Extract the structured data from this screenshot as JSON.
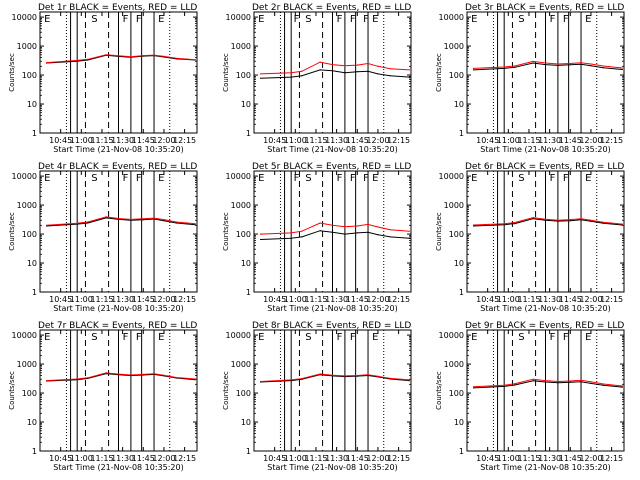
{
  "figure": {
    "title_suffix": "BLACK = Events, RED = LLD",
    "xlabel": "Start Time (21-Nov-08 10:35:20)",
    "ylabel": "Counts/sec",
    "x_tick_labels": [
      "10:45",
      "11:00",
      "11:15",
      "11:30",
      "11:45",
      "12:00",
      "12:15"
    ],
    "y_tick_labels": [
      "1",
      "10",
      "100",
      "1000",
      "10000"
    ],
    "colors": {
      "events": "#000000",
      "lld": "#ff0000"
    }
  },
  "chart_data": [
    {
      "type": "line",
      "title": "Det 1r",
      "xlim": [
        10.5,
        12.4
      ],
      "ylim": [
        1,
        15000
      ],
      "yscale": "log",
      "x": [
        10.58,
        10.95,
        11.08,
        11.3,
        11.45,
        11.6,
        11.75,
        11.88,
        12.0,
        12.15,
        12.38
      ],
      "series": [
        {
          "name": "Events",
          "values": [
            260,
            300,
            330,
            480,
            440,
            410,
            450,
            470,
            420,
            360,
            330
          ]
        },
        {
          "name": "LLD",
          "values": [
            270,
            320,
            350,
            500,
            460,
            430,
            470,
            490,
            440,
            380,
            340
          ]
        }
      ],
      "solid_lines": [
        10.87,
        10.95,
        11.45,
        11.6,
        11.73,
        11.88
      ],
      "dashed_lines": [
        11.05,
        11.33
      ],
      "dotted_lines": [
        10.82,
        12.07
      ],
      "region_labels": [
        {
          "text": "E",
          "x": 10.55
        },
        {
          "text": "S",
          "x": 11.12
        },
        {
          "text": "F",
          "x": 11.5
        },
        {
          "text": "F",
          "x": 11.66
        },
        {
          "text": "E",
          "x": 11.93
        }
      ]
    },
    {
      "type": "line",
      "title": "Det 2r",
      "xlim": [
        10.5,
        12.4
      ],
      "ylim": [
        1,
        15000
      ],
      "yscale": "log",
      "x": [
        10.58,
        10.95,
        11.08,
        11.3,
        11.45,
        11.6,
        11.75,
        11.88,
        12.0,
        12.15,
        12.38
      ],
      "series": [
        {
          "name": "Events",
          "values": [
            78,
            85,
            95,
            150,
            140,
            120,
            130,
            135,
            110,
            95,
            85
          ]
        },
        {
          "name": "LLD",
          "values": [
            110,
            120,
            135,
            280,
            230,
            210,
            220,
            250,
            200,
            165,
            150
          ]
        }
      ],
      "solid_lines": [
        10.87,
        10.95,
        11.45,
        11.6,
        11.73,
        11.88
      ],
      "dashed_lines": [
        11.05,
        11.33
      ],
      "dotted_lines": [
        10.82,
        12.07
      ],
      "region_labels": [
        {
          "text": "E",
          "x": 10.55
        },
        {
          "text": "F",
          "x": 10.98
        },
        {
          "text": "S",
          "x": 11.12
        },
        {
          "text": "F",
          "x": 11.5
        },
        {
          "text": "F",
          "x": 11.66
        },
        {
          "text": "F",
          "x": 11.82
        },
        {
          "text": "E",
          "x": 11.93
        }
      ]
    },
    {
      "type": "line",
      "title": "Det 3r",
      "xlim": [
        10.5,
        12.4
      ],
      "ylim": [
        1,
        15000
      ],
      "yscale": "log",
      "x": [
        10.58,
        10.95,
        11.08,
        11.3,
        11.45,
        11.6,
        11.75,
        11.88,
        12.0,
        12.15,
        12.38
      ],
      "series": [
        {
          "name": "Events",
          "values": [
            150,
            170,
            185,
            260,
            230,
            215,
            225,
            235,
            210,
            180,
            155
          ]
        },
        {
          "name": "LLD",
          "values": [
            170,
            190,
            205,
            295,
            260,
            240,
            250,
            265,
            240,
            205,
            175
          ]
        }
      ],
      "solid_lines": [
        10.87,
        10.95,
        11.45,
        11.6,
        11.73,
        11.88
      ],
      "dashed_lines": [
        11.05,
        11.33
      ],
      "dotted_lines": [
        10.82,
        12.07
      ],
      "region_labels": [
        {
          "text": "E",
          "x": 10.55
        },
        {
          "text": "S",
          "x": 11.12
        },
        {
          "text": "F",
          "x": 11.5
        },
        {
          "text": "F",
          "x": 11.66
        },
        {
          "text": "E",
          "x": 11.93
        }
      ]
    },
    {
      "type": "line",
      "title": "Det 4r",
      "xlim": [
        10.5,
        12.4
      ],
      "ylim": [
        1,
        15000
      ],
      "yscale": "log",
      "x": [
        10.58,
        10.95,
        11.08,
        11.3,
        11.45,
        11.6,
        11.75,
        11.88,
        12.0,
        12.15,
        12.38
      ],
      "series": [
        {
          "name": "Events",
          "values": [
            190,
            220,
            240,
            360,
            320,
            300,
            310,
            330,
            290,
            240,
            210
          ]
        },
        {
          "name": "LLD",
          "values": [
            200,
            235,
            260,
            390,
            345,
            320,
            335,
            355,
            315,
            260,
            225
          ]
        }
      ],
      "solid_lines": [
        10.87,
        10.95,
        11.45,
        11.6,
        11.73,
        11.88
      ],
      "dashed_lines": [
        11.05,
        11.33
      ],
      "dotted_lines": [
        10.82,
        12.07
      ],
      "region_labels": [
        {
          "text": "E",
          "x": 10.55
        },
        {
          "text": "S",
          "x": 11.12
        },
        {
          "text": "F",
          "x": 11.5
        },
        {
          "text": "F",
          "x": 11.66
        },
        {
          "text": "E",
          "x": 11.93
        }
      ]
    },
    {
      "type": "line",
      "title": "Det 5r",
      "xlim": [
        10.5,
        12.4
      ],
      "ylim": [
        1,
        15000
      ],
      "yscale": "log",
      "x": [
        10.58,
        10.95,
        11.08,
        11.3,
        11.45,
        11.6,
        11.75,
        11.88,
        12.0,
        12.15,
        12.38
      ],
      "series": [
        {
          "name": "Events",
          "values": [
            65,
            72,
            80,
            130,
            115,
            100,
            110,
            115,
            95,
            80,
            72
          ]
        },
        {
          "name": "LLD",
          "values": [
            100,
            110,
            125,
            240,
            200,
            180,
            190,
            215,
            175,
            140,
            125
          ]
        }
      ],
      "solid_lines": [
        10.87,
        10.95,
        11.45,
        11.6,
        11.73,
        11.88
      ],
      "dashed_lines": [
        11.05,
        11.33
      ],
      "dotted_lines": [
        10.82,
        12.07
      ],
      "region_labels": [
        {
          "text": "E",
          "x": 10.55
        },
        {
          "text": "F",
          "x": 10.98
        },
        {
          "text": "S",
          "x": 11.12
        },
        {
          "text": "F",
          "x": 11.5
        },
        {
          "text": "F",
          "x": 11.66
        },
        {
          "text": "F",
          "x": 11.82
        },
        {
          "text": "E",
          "x": 11.93
        }
      ]
    },
    {
      "type": "line",
      "title": "Det 6r",
      "xlim": [
        10.5,
        12.4
      ],
      "ylim": [
        1,
        15000
      ],
      "yscale": "log",
      "x": [
        10.58,
        10.95,
        11.08,
        11.3,
        11.45,
        11.6,
        11.75,
        11.88,
        12.0,
        12.15,
        12.38
      ],
      "series": [
        {
          "name": "Events",
          "values": [
            190,
            210,
            230,
            340,
            300,
            280,
            290,
            310,
            275,
            235,
            205
          ]
        },
        {
          "name": "LLD",
          "values": [
            205,
            225,
            250,
            370,
            325,
            300,
            315,
            335,
            300,
            255,
            220
          ]
        }
      ],
      "solid_lines": [
        10.87,
        10.95,
        11.45,
        11.6,
        11.73,
        11.88
      ],
      "dashed_lines": [
        11.05,
        11.33
      ],
      "dotted_lines": [
        10.82,
        12.07
      ],
      "region_labels": [
        {
          "text": "E",
          "x": 10.55
        },
        {
          "text": "S",
          "x": 11.12
        },
        {
          "text": "F",
          "x": 11.5
        },
        {
          "text": "F",
          "x": 11.66
        },
        {
          "text": "E",
          "x": 11.93
        }
      ]
    },
    {
      "type": "line",
      "title": "Det 7r",
      "xlim": [
        10.5,
        12.4
      ],
      "ylim": [
        1,
        15000
      ],
      "yscale": "log",
      "x": [
        10.58,
        10.95,
        11.08,
        11.3,
        11.45,
        11.6,
        11.75,
        11.88,
        12.0,
        12.15,
        12.38
      ],
      "series": [
        {
          "name": "Events",
          "values": [
            260,
            290,
            320,
            470,
            430,
            400,
            420,
            440,
            390,
            330,
            290
          ]
        },
        {
          "name": "LLD",
          "values": [
            270,
            305,
            335,
            495,
            450,
            420,
            440,
            460,
            410,
            345,
            305
          ]
        }
      ],
      "solid_lines": [
        10.87,
        10.95,
        11.45,
        11.6,
        11.73,
        11.88
      ],
      "dashed_lines": [
        11.05,
        11.33
      ],
      "dotted_lines": [
        10.82,
        12.07
      ],
      "region_labels": [
        {
          "text": "E",
          "x": 10.55
        },
        {
          "text": "S",
          "x": 11.12
        },
        {
          "text": "F",
          "x": 11.5
        },
        {
          "text": "F",
          "x": 11.66
        },
        {
          "text": "E",
          "x": 11.93
        }
      ]
    },
    {
      "type": "line",
      "title": "Det 8r",
      "xlim": [
        10.5,
        12.4
      ],
      "ylim": [
        1,
        15000
      ],
      "yscale": "log",
      "x": [
        10.58,
        10.95,
        11.08,
        11.3,
        11.45,
        11.6,
        11.75,
        11.88,
        12.0,
        12.15,
        12.38
      ],
      "series": [
        {
          "name": "Events",
          "values": [
            240,
            270,
            300,
            430,
            390,
            370,
            385,
            405,
            360,
            305,
            270
          ]
        },
        {
          "name": "LLD",
          "values": [
            250,
            285,
            315,
            455,
            410,
            390,
            405,
            425,
            380,
            320,
            285
          ]
        }
      ],
      "solid_lines": [
        10.87,
        10.95,
        11.45,
        11.6,
        11.73,
        11.88
      ],
      "dashed_lines": [
        11.05,
        11.33
      ],
      "dotted_lines": [
        10.82,
        12.07
      ],
      "region_labels": [
        {
          "text": "E",
          "x": 10.55
        },
        {
          "text": "S",
          "x": 11.12
        },
        {
          "text": "F",
          "x": 11.5
        },
        {
          "text": "F",
          "x": 11.66
        },
        {
          "text": "E",
          "x": 11.93
        }
      ]
    },
    {
      "type": "line",
      "title": "Det 9r",
      "xlim": [
        10.5,
        12.4
      ],
      "ylim": [
        1,
        15000
      ],
      "yscale": "log",
      "x": [
        10.58,
        10.95,
        11.08,
        11.3,
        11.45,
        11.6,
        11.75,
        11.88,
        12.0,
        12.15,
        12.38
      ],
      "series": [
        {
          "name": "Events",
          "values": [
            150,
            170,
            190,
            265,
            240,
            225,
            235,
            245,
            215,
            185,
            160
          ]
        },
        {
          "name": "LLD",
          "values": [
            165,
            185,
            210,
            300,
            270,
            250,
            260,
            275,
            245,
            205,
            175
          ]
        }
      ],
      "solid_lines": [
        10.87,
        10.95,
        11.45,
        11.6,
        11.73,
        11.88
      ],
      "dashed_lines": [
        11.05,
        11.33
      ],
      "dotted_lines": [
        10.82,
        12.07
      ],
      "region_labels": [
        {
          "text": "E",
          "x": 10.55
        },
        {
          "text": "S",
          "x": 11.12
        },
        {
          "text": "F",
          "x": 11.5
        },
        {
          "text": "F",
          "x": 11.66
        },
        {
          "text": "E",
          "x": 11.93
        }
      ]
    }
  ]
}
